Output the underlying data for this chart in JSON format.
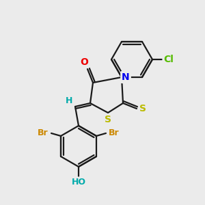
{
  "background_color": "#ebebeb",
  "bond_color": "#1a1a1a",
  "atom_colors": {
    "Cl": "#55bb00",
    "N": "#0000ee",
    "O": "#ee0000",
    "S": "#bbbb00",
    "Br": "#cc8800",
    "H": "#00aaaa",
    "OH": "#00aaaa"
  },
  "line_width": 1.6,
  "font_size": 10
}
